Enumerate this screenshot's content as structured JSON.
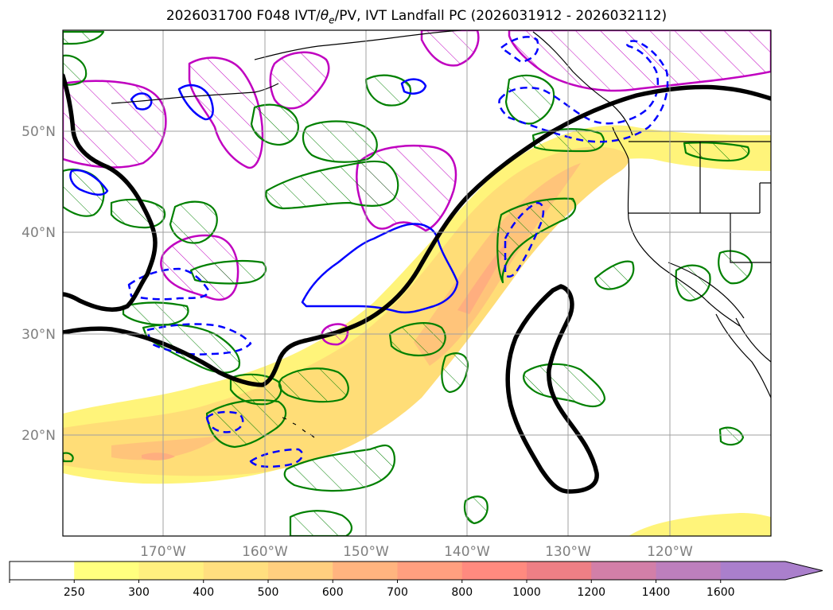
{
  "title": {
    "prefix": "2026031700 F048 IVT/",
    "theta": "θ",
    "theta_sub": "e",
    "suffix": "/PV, IVT Landfall PC (2026031912 - 2026032112)"
  },
  "map": {
    "projection": "PlateCarree",
    "lon_range": [
      180,
      250
    ],
    "lat_range": [
      10,
      60
    ],
    "lon_ticks": [
      {
        "lon": 190,
        "label": "170°W"
      },
      {
        "lon": 200,
        "label": "160°W"
      },
      {
        "lon": 210,
        "label": "150°W"
      },
      {
        "lon": 220,
        "label": "140°W"
      },
      {
        "lon": 230,
        "label": "130°W"
      },
      {
        "lon": 240,
        "label": "120°W"
      }
    ],
    "lat_ticks": [
      {
        "lat": 20,
        "label": "20°N"
      },
      {
        "lat": 30,
        "label": "30°N"
      },
      {
        "lat": 40,
        "label": "40°N"
      },
      {
        "lat": 50,
        "label": "50°N"
      }
    ],
    "gridlines": true
  },
  "colorbar": {
    "levels": [
      "250",
      "300",
      "400",
      "500",
      "600",
      "700",
      "800",
      "1000",
      "1200",
      "1400",
      "1600"
    ],
    "colors": [
      "#ffffff",
      "#ffff7f",
      "#fff07f",
      "#ffdf7f",
      "#ffcf7f",
      "#ffb47f",
      "#ff9f7f",
      "#ff8a7f",
      "#ee7f85",
      "#d27fa8",
      "#bd7fbd",
      "#aa7fcc"
    ],
    "extend": "max"
  },
  "layer_colors": {
    "ivt_fill_light": "#fff47a",
    "ivt_fill_mid": "#ffdd77",
    "ivt_fill_high": "#ffc47a",
    "ivt_fill_peak": "#ffae7f",
    "pc_contour": "#000000",
    "theta_e_pos": "#008000",
    "theta_e_neg": "#0000ff",
    "pv": "#c000c0",
    "coastline": "#000000"
  }
}
